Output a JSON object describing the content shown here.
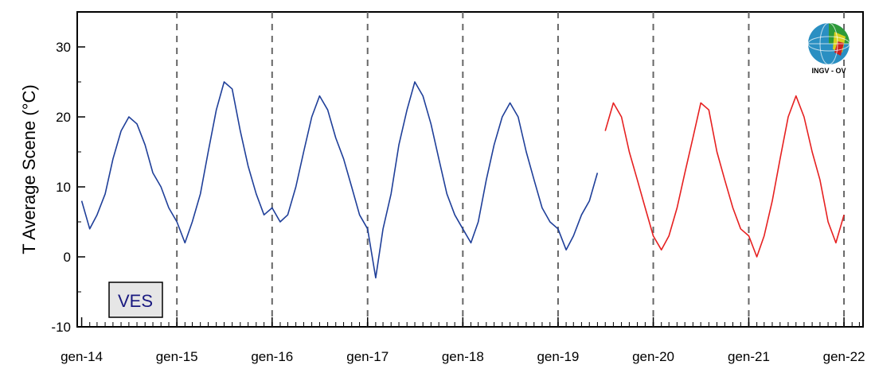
{
  "chart_data": {
    "type": "line",
    "title": "",
    "xlabel": "",
    "ylabel": "T Average Scene (°C)",
    "ylim": [
      -10,
      35
    ],
    "yticks": [
      -10,
      0,
      10,
      20,
      30
    ],
    "xlim": [
      "2013-12-15",
      "2022-03-15"
    ],
    "xticks": [
      "2014-01-01",
      "2015-01-01",
      "2016-01-01",
      "2017-01-01",
      "2018-01-01",
      "2019-01-01",
      "2020-01-01",
      "2021-01-01",
      "2022-01-01"
    ],
    "xtick_labels": [
      "gen-14",
      "gen-15",
      "gen-16",
      "gen-17",
      "gen-18",
      "gen-19",
      "gen-20",
      "gen-21",
      "gen-22"
    ],
    "dashed_vlines": [
      "2015-01-01",
      "2016-01-01",
      "2017-01-01",
      "2018-01-01",
      "2019-01-01",
      "2020-01-01",
      "2021-01-01",
      "2022-01-01"
    ],
    "grid": false,
    "series": [
      {
        "color": "#1f3f99",
        "x": [
          "2014-01-01",
          "2014-02-01",
          "2014-03-01",
          "2014-04-01",
          "2014-05-01",
          "2014-06-01",
          "2014-07-01",
          "2014-08-01",
          "2014-09-01",
          "2014-10-01",
          "2014-11-01",
          "2014-12-01",
          "2015-01-01",
          "2015-02-01",
          "2015-03-01",
          "2015-04-01",
          "2015-05-01",
          "2015-06-01",
          "2015-07-01",
          "2015-08-01",
          "2015-09-01",
          "2015-10-01",
          "2015-11-01",
          "2015-12-01",
          "2016-01-01",
          "2016-02-01",
          "2016-03-01",
          "2016-04-01",
          "2016-05-01",
          "2016-06-01",
          "2016-07-01",
          "2016-08-01",
          "2016-09-01",
          "2016-10-01",
          "2016-11-01",
          "2016-12-01",
          "2017-01-01",
          "2017-02-01",
          "2017-03-01",
          "2017-04-01",
          "2017-05-01",
          "2017-06-01",
          "2017-07-01",
          "2017-08-01",
          "2017-09-01",
          "2017-10-01",
          "2017-11-01",
          "2017-12-01",
          "2018-01-01",
          "2018-02-01",
          "2018-03-01",
          "2018-04-01",
          "2018-05-01",
          "2018-06-01",
          "2018-07-01",
          "2018-08-01",
          "2018-09-01",
          "2018-10-01",
          "2018-11-01",
          "2018-12-01",
          "2019-01-01",
          "2019-02-01",
          "2019-03-01",
          "2019-04-01",
          "2019-05-01",
          "2019-06-01"
        ],
        "values": [
          8,
          4,
          6,
          9,
          14,
          18,
          20,
          19,
          16,
          12,
          10,
          7,
          5,
          2,
          5,
          9,
          15,
          21,
          25,
          24,
          18,
          13,
          9,
          6,
          7,
          5,
          6,
          10,
          15,
          20,
          23,
          21,
          17,
          14,
          10,
          6,
          4,
          -3,
          4,
          9,
          16,
          21,
          25,
          23,
          19,
          14,
          9,
          6,
          4,
          2,
          5,
          11,
          16,
          20,
          22,
          20,
          15,
          11,
          7,
          5,
          4,
          1,
          3,
          6,
          8,
          12
        ]
      },
      {
        "color": "#e62020",
        "x": [
          "2019-07-01",
          "2019-08-01",
          "2019-09-01",
          "2019-10-01",
          "2019-11-01",
          "2019-12-01",
          "2020-01-01",
          "2020-02-01",
          "2020-03-01",
          "2020-04-01",
          "2020-05-01",
          "2020-06-01",
          "2020-07-01",
          "2020-08-01",
          "2020-09-01",
          "2020-10-01",
          "2020-11-01",
          "2020-12-01",
          "2021-01-01",
          "2021-02-01",
          "2021-03-01",
          "2021-04-01",
          "2021-05-01",
          "2021-06-01",
          "2021-07-01",
          "2021-08-01",
          "2021-09-01",
          "2021-10-01",
          "2021-11-01",
          "2021-12-01",
          "2022-01-01"
        ],
        "values": [
          18,
          22,
          20,
          15,
          11,
          7,
          3,
          1,
          3,
          7,
          12,
          17,
          22,
          21,
          15,
          11,
          7,
          4,
          3,
          0,
          3,
          8,
          14,
          20,
          23,
          20,
          15,
          11,
          5,
          2,
          6
        ]
      }
    ],
    "annotations": {
      "station_badge": "VES",
      "logo_text": "INGV - OV"
    }
  }
}
